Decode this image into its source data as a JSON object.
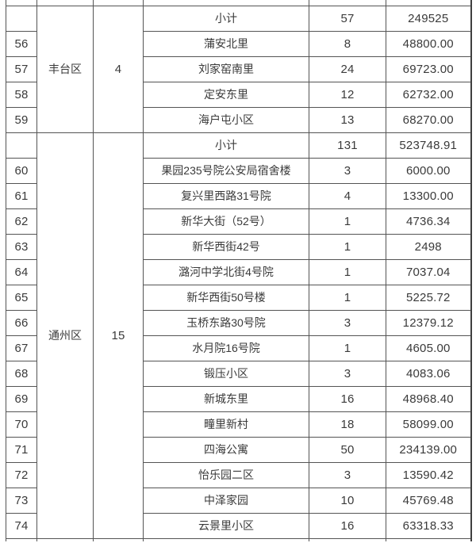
{
  "colors": {
    "border": "#545454",
    "text": "#3a3a3a",
    "background": "#ffffff"
  },
  "table": {
    "subtotal_label": "小计",
    "groups": [
      {
        "district": "丰台区",
        "district_count": "4",
        "rows": [
          {
            "no": "",
            "name": "小计",
            "qty": "57",
            "amount": "249525"
          },
          {
            "no": "56",
            "name": "蒲安北里",
            "qty": "8",
            "amount": "48800.00"
          },
          {
            "no": "57",
            "name": "刘家窑南里",
            "qty": "24",
            "amount": "69723.00"
          },
          {
            "no": "58",
            "name": "定安东里",
            "qty": "12",
            "amount": "62732.00"
          },
          {
            "no": "59",
            "name": "海户屯小区",
            "qty": "13",
            "amount": "68270.00"
          }
        ]
      },
      {
        "district": "通州区",
        "district_count": "15",
        "rows": [
          {
            "no": "",
            "name": "小计",
            "qty": "131",
            "amount": "523748.91"
          },
          {
            "no": "60",
            "name": "果园235号院公安局宿舍楼",
            "qty": "3",
            "amount": "6000.00"
          },
          {
            "no": "61",
            "name": "复兴里西路31号院",
            "qty": "4",
            "amount": "13300.00"
          },
          {
            "no": "62",
            "name": "新华大街（52号）",
            "qty": "1",
            "amount": "4736.34"
          },
          {
            "no": "63",
            "name": "新华西街42号",
            "qty": "1",
            "amount": "2498"
          },
          {
            "no": "64",
            "name": "潞河中学北街4号院",
            "qty": "1",
            "amount": "7037.04"
          },
          {
            "no": "65",
            "name": "新华西街50号楼",
            "qty": "1",
            "amount": "5225.72"
          },
          {
            "no": "66",
            "name": "玉桥东路30号院",
            "qty": "3",
            "amount": "12379.12"
          },
          {
            "no": "67",
            "name": "水月院16号院",
            "qty": "1",
            "amount": "4605.00"
          },
          {
            "no": "68",
            "name": "锻压小区",
            "qty": "3",
            "amount": "4083.06"
          },
          {
            "no": "69",
            "name": "新城东里",
            "qty": "16",
            "amount": "48968.40"
          },
          {
            "no": "70",
            "name": "疃里新村",
            "qty": "18",
            "amount": "58099.00"
          },
          {
            "no": "71",
            "name": "四海公寓",
            "qty": "50",
            "amount": "234139.00"
          },
          {
            "no": "72",
            "name": "怡乐园二区",
            "qty": "3",
            "amount": "13590.42"
          },
          {
            "no": "73",
            "name": "中泽家园",
            "qty": "10",
            "amount": "45769.48"
          },
          {
            "no": "74",
            "name": "云景里小区",
            "qty": "16",
            "amount": "63318.33"
          }
        ]
      }
    ]
  }
}
